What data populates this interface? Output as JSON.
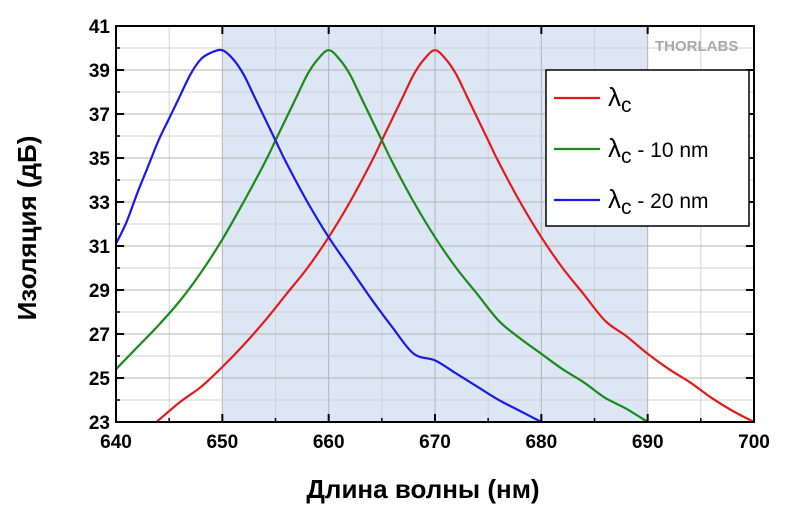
{
  "watermark": "THORLABS",
  "chart_data": {
    "type": "line",
    "title": "",
    "xlabel": "Длина волны (нм)",
    "ylabel": "Изоляция (дБ)",
    "xlim": [
      640,
      700
    ],
    "ylim": [
      23,
      41
    ],
    "xticks": [
      640,
      650,
      660,
      670,
      680,
      690,
      700
    ],
    "yticks": [
      23,
      25,
      27,
      29,
      31,
      33,
      35,
      37,
      39,
      41
    ],
    "grid": true,
    "legend_position": "top-right",
    "shaded_region": {
      "x": [
        650,
        690
      ],
      "color": "#dce6f5"
    },
    "series": [
      {
        "name": "λc",
        "name_symbol": "λ",
        "name_sub": "c",
        "name_suffix": "",
        "color": "#e31a1c",
        "x": [
          643.8,
          646,
          648,
          650,
          652,
          654,
          656,
          658,
          660,
          662,
          664,
          665,
          666,
          667,
          668,
          669,
          670,
          671,
          672,
          673,
          674,
          675,
          676,
          678,
          680,
          682,
          684,
          686,
          688,
          690,
          692,
          694,
          696,
          698,
          700
        ],
        "y": [
          23.0,
          23.9,
          24.6,
          25.5,
          26.5,
          27.6,
          28.8,
          30.0,
          31.4,
          33.0,
          34.8,
          35.8,
          36.8,
          37.8,
          38.8,
          39.5,
          39.9,
          39.5,
          38.8,
          37.8,
          36.8,
          35.8,
          34.8,
          33.0,
          31.4,
          30.0,
          28.8,
          27.6,
          26.9,
          26.1,
          25.4,
          24.8,
          24.1,
          23.5,
          23.0
        ]
      },
      {
        "name": "λc - 10 nm",
        "name_symbol": "λ",
        "name_sub": "c",
        "name_suffix": " - 10 nm",
        "color": "#1a8a1a",
        "x": [
          640,
          642,
          644,
          646,
          648,
          650,
          652,
          654,
          655,
          656,
          657,
          658,
          659,
          660,
          661,
          662,
          663,
          664,
          665,
          666,
          668,
          670,
          672,
          674,
          676,
          678,
          680,
          682,
          684,
          686,
          688,
          690
        ],
        "y": [
          25.4,
          26.4,
          27.4,
          28.5,
          29.8,
          31.3,
          33.0,
          34.8,
          35.8,
          36.8,
          37.8,
          38.8,
          39.5,
          39.9,
          39.5,
          38.8,
          37.8,
          36.8,
          35.8,
          34.8,
          33.0,
          31.4,
          30.0,
          28.8,
          27.6,
          26.8,
          26.1,
          25.4,
          24.8,
          24.1,
          23.6,
          23.0
        ]
      },
      {
        "name": "λc - 20 nm",
        "name_symbol": "λ",
        "name_sub": "c",
        "name_suffix": " - 20 nm",
        "color": "#1a1ae6",
        "x": [
          640,
          641,
          642,
          643,
          644,
          645,
          646,
          647,
          648,
          649,
          650,
          651,
          652,
          653,
          654,
          655,
          656,
          658,
          660,
          662,
          664,
          666,
          668,
          670,
          672,
          674,
          676,
          678,
          680
        ],
        "y": [
          31.1,
          32.1,
          33.4,
          34.6,
          35.8,
          36.8,
          37.8,
          38.8,
          39.5,
          39.8,
          39.9,
          39.5,
          38.8,
          37.8,
          36.8,
          35.8,
          34.8,
          33.0,
          31.4,
          30.0,
          28.6,
          27.3,
          26.1,
          25.8,
          25.2,
          24.6,
          24.0,
          23.5,
          23.0
        ]
      }
    ]
  }
}
